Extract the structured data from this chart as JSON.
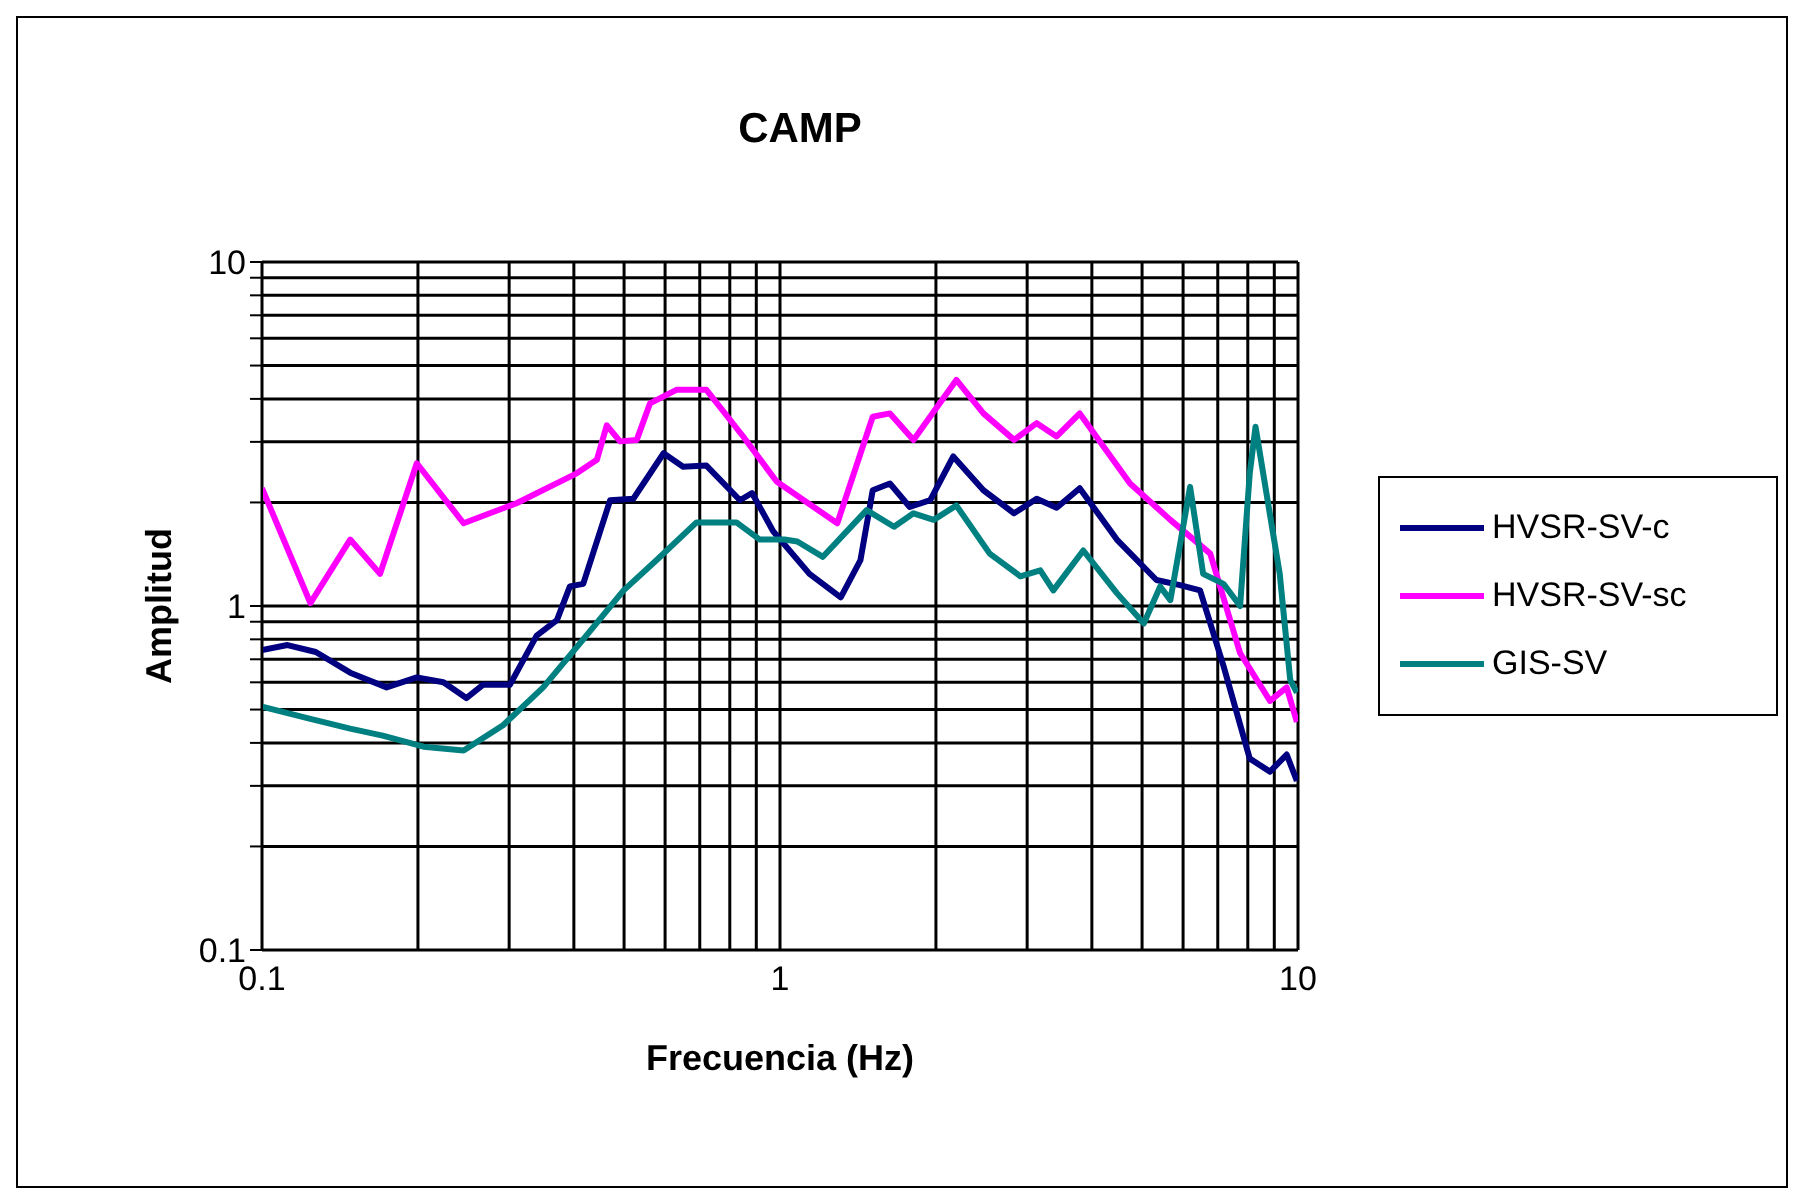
{
  "chart_data": {
    "type": "line",
    "title": "CAMP",
    "xlabel": "Frecuencia (Hz)",
    "ylabel": "Amplitud",
    "log": "xy",
    "grid": true,
    "legend": "right",
    "marker": "none",
    "line_style": "solid",
    "xlim": [
      0.1,
      10
    ],
    "ylim": [
      0.1,
      10
    ],
    "xticks": [
      0.1,
      {
        "value": 0.2,
        "label": null
      },
      {
        "value": 0.3,
        "label": null
      },
      {
        "value": 0.4,
        "label": null
      },
      {
        "value": 0.5,
        "label": null
      },
      {
        "value": 0.6,
        "label": null
      },
      {
        "value": 0.7,
        "label": null
      },
      {
        "value": 0.8,
        "label": null
      },
      {
        "value": 0.9,
        "label": null
      },
      1,
      {
        "value": 2,
        "label": null
      },
      {
        "value": 3,
        "label": null
      },
      {
        "value": 4,
        "label": null
      },
      {
        "value": 5,
        "label": null
      },
      {
        "value": 6,
        "label": null
      },
      {
        "value": 7,
        "label": null
      },
      {
        "value": 8,
        "label": null
      },
      {
        "value": 9,
        "label": null
      },
      10
    ],
    "yticks": [
      0.1,
      {
        "value": 0.2,
        "label": null
      },
      {
        "value": 0.3,
        "label": null
      },
      {
        "value": 0.4,
        "label": null
      },
      {
        "value": 0.5,
        "label": null
      },
      {
        "value": 0.6,
        "label": null
      },
      {
        "value": 0.7,
        "label": null
      },
      {
        "value": 0.8,
        "label": null
      },
      {
        "value": 0.9,
        "label": null
      },
      1,
      {
        "value": 2,
        "label": null
      },
      {
        "value": 3,
        "label": null
      },
      {
        "value": 4,
        "label": null
      },
      {
        "value": 5,
        "label": null
      },
      {
        "value": 6,
        "label": null
      },
      {
        "value": 7,
        "label": null
      },
      {
        "value": 8,
        "label": null
      },
      {
        "value": 9,
        "label": null
      },
      10
    ],
    "series": [
      {
        "name": "HVSR-SV-c",
        "color": "#000080",
        "x": [
          0.1,
          0.112,
          0.127,
          0.148,
          0.174,
          0.199,
          0.224,
          0.248,
          0.267,
          0.301,
          0.339,
          0.371,
          0.393,
          0.417,
          0.47,
          0.521,
          0.596,
          0.65,
          0.721,
          0.837,
          0.883,
          0.97,
          1.14,
          1.31,
          1.43,
          1.51,
          1.63,
          1.78,
          1.95,
          2.16,
          2.47,
          2.83,
          3.13,
          3.42,
          3.79,
          4.47,
          5.33,
          5.92,
          6.47,
          7.18,
          8.07,
          8.83,
          9.51,
          9.95
        ],
        "values": [
          0.745,
          0.77,
          0.735,
          0.64,
          0.58,
          0.62,
          0.6,
          0.54,
          0.59,
          0.59,
          0.82,
          0.91,
          1.14,
          1.16,
          2.03,
          2.05,
          2.78,
          2.54,
          2.56,
          2.03,
          2.13,
          1.65,
          1.24,
          1.06,
          1.36,
          2.17,
          2.27,
          1.94,
          2.03,
          2.72,
          2.17,
          1.86,
          2.05,
          1.93,
          2.2,
          1.56,
          1.19,
          1.15,
          1.11,
          0.67,
          0.36,
          0.33,
          0.37,
          0.31
        ]
      },
      {
        "name": "HVSR-SV-sc",
        "color": "#ff00ff",
        "x": [
          0.1,
          0.124,
          0.148,
          0.169,
          0.199,
          0.245,
          0.31,
          0.405,
          0.443,
          0.463,
          0.491,
          0.529,
          0.561,
          0.631,
          0.721,
          0.849,
          0.985,
          1.29,
          1.51,
          1.63,
          1.81,
          2.19,
          2.47,
          2.83,
          3.13,
          3.42,
          3.79,
          4.74,
          5.67,
          6.77,
          7.73,
          8.83,
          9.51,
          9.95
        ],
        "values": [
          2.2,
          1.02,
          1.56,
          1.24,
          2.6,
          1.74,
          1.99,
          2.43,
          2.66,
          3.35,
          3.01,
          3.04,
          3.88,
          4.25,
          4.25,
          3.11,
          2.3,
          1.74,
          3.55,
          3.63,
          3.04,
          4.54,
          3.63,
          3.04,
          3.4,
          3.11,
          3.63,
          2.27,
          1.78,
          1.42,
          0.73,
          0.53,
          0.58,
          0.46
        ]
      },
      {
        "name": "GIS-SV",
        "color": "#008080",
        "x": [
          0.1,
          0.124,
          0.148,
          0.171,
          0.205,
          0.245,
          0.292,
          0.349,
          0.417,
          0.499,
          0.578,
          0.69,
          0.824,
          0.914,
          1.02,
          1.08,
          1.21,
          1.47,
          1.66,
          1.81,
          1.98,
          2.19,
          2.54,
          2.91,
          3.18,
          3.37,
          3.85,
          4.47,
          5.04,
          5.42,
          5.67,
          6.19,
          6.56,
          7.18,
          7.73,
          8.07,
          8.28,
          8.69,
          9.22,
          9.66,
          9.95
        ],
        "values": [
          0.51,
          0.47,
          0.44,
          0.42,
          0.39,
          0.38,
          0.45,
          0.58,
          0.8,
          1.11,
          1.36,
          1.75,
          1.75,
          1.56,
          1.56,
          1.54,
          1.39,
          1.9,
          1.7,
          1.86,
          1.78,
          1.96,
          1.42,
          1.22,
          1.27,
          1.11,
          1.45,
          1.09,
          0.89,
          1.14,
          1.04,
          2.22,
          1.24,
          1.16,
          1.0,
          2.43,
          3.32,
          2.13,
          1.24,
          0.61,
          0.56
        ]
      }
    ]
  }
}
